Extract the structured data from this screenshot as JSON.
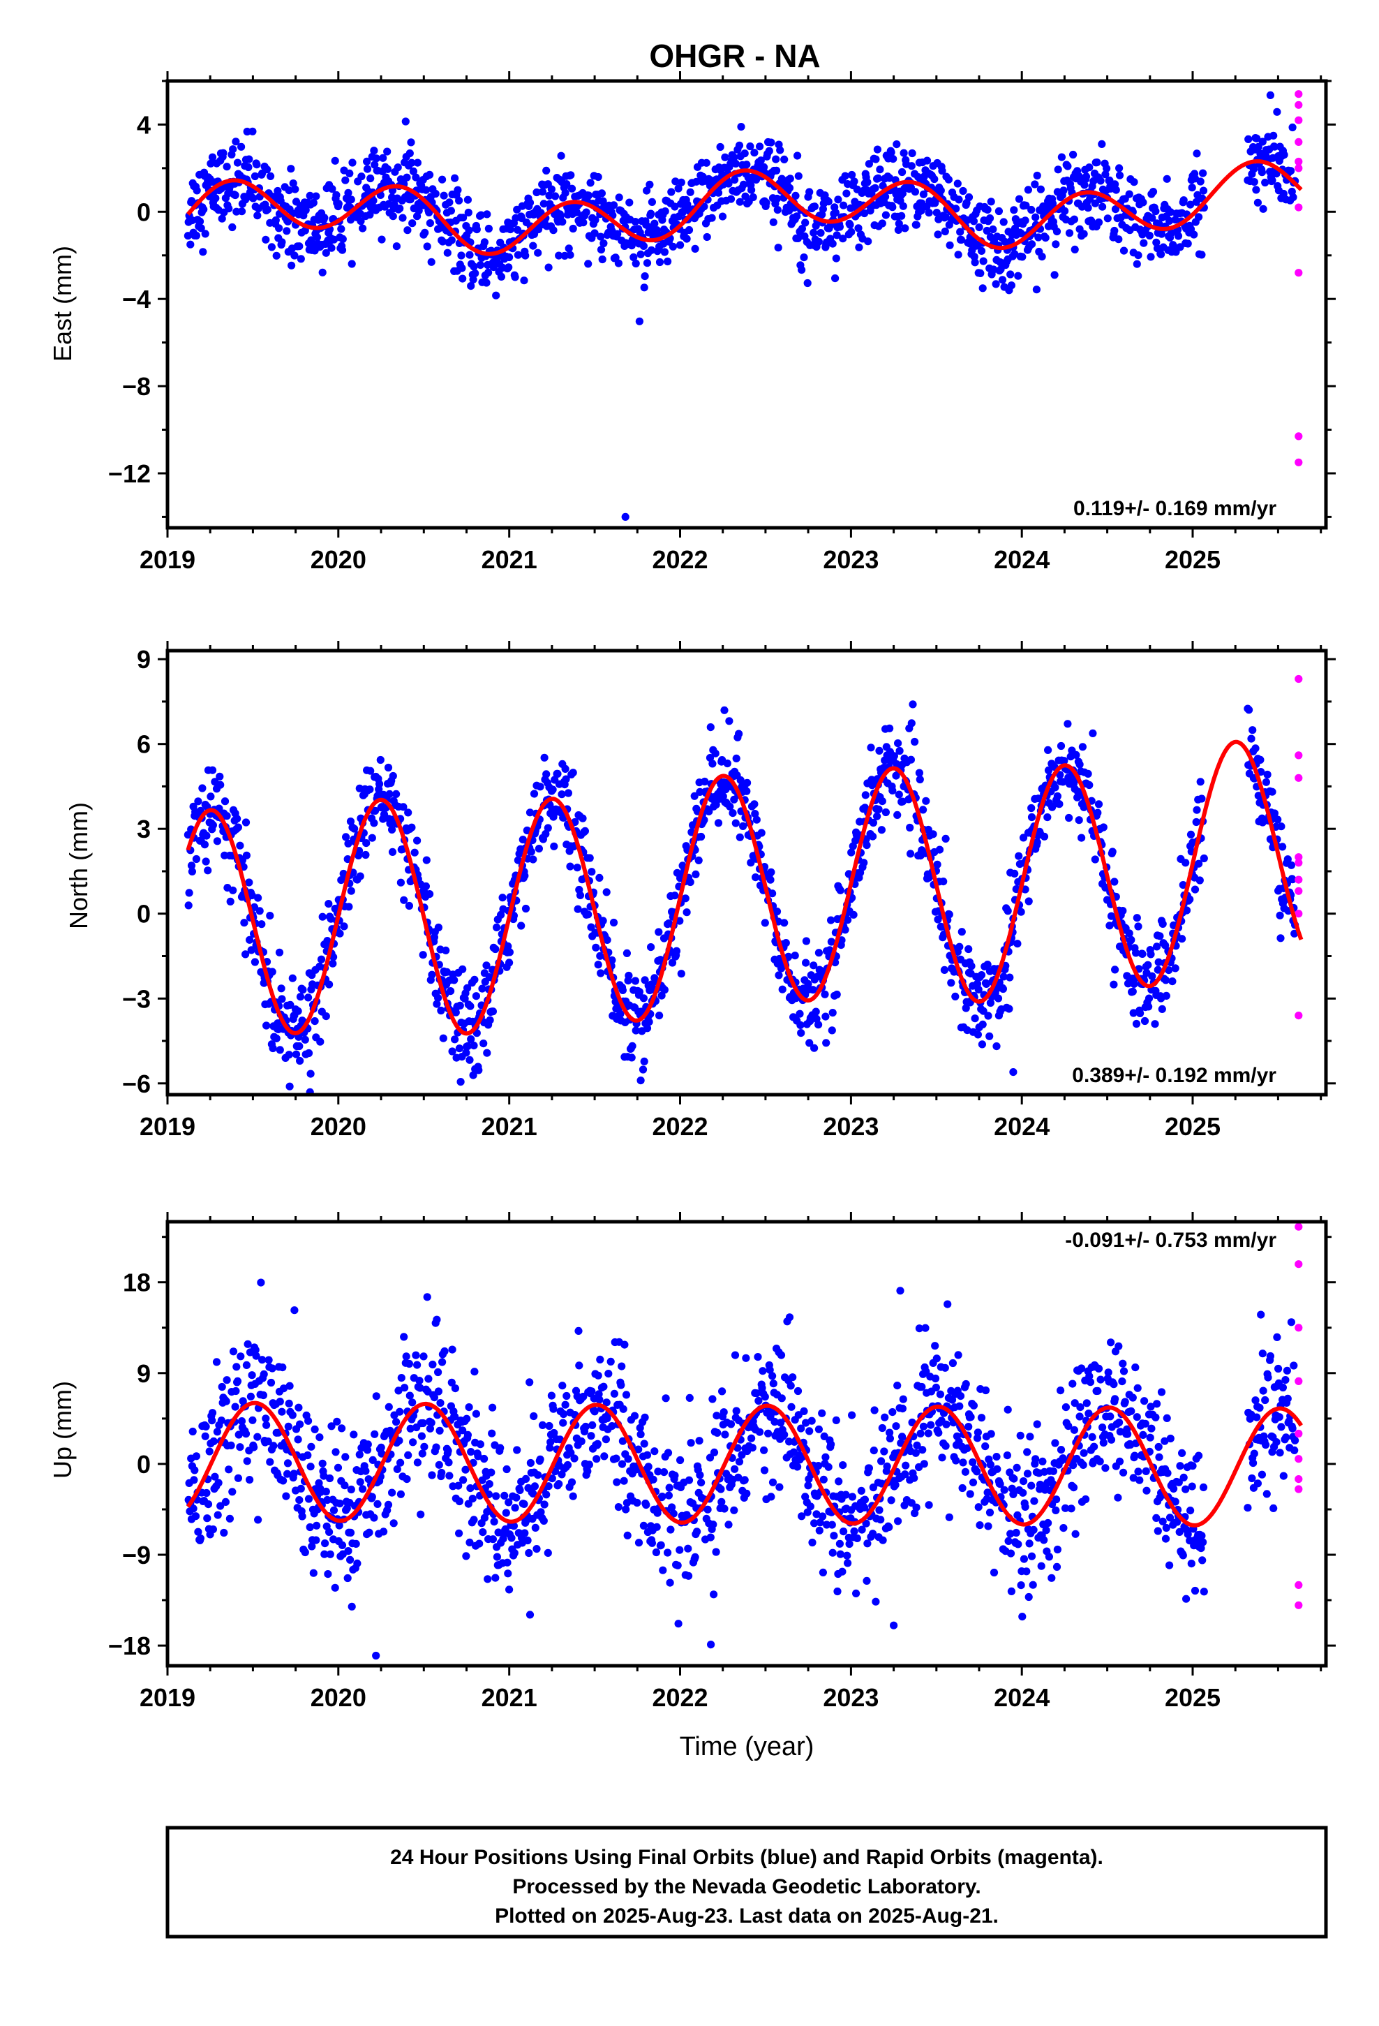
{
  "chart_data": {
    "type": "scatter",
    "title": "OHGR - NA",
    "xlabel": "Time (year)",
    "xlim": [
      2019.0,
      2025.78
    ],
    "x_ticks": [
      2019,
      2020,
      2021,
      2022,
      2023,
      2024,
      2025
    ],
    "colors": {
      "final": "#0000ff",
      "rapid": "#ff00ff",
      "model": "#ff0000"
    },
    "panels": [
      {
        "name": "east",
        "ylabel": "East (mm)",
        "ylim": [
          -14.5,
          6.0
        ],
        "y_ticks": [
          4,
          0,
          -4,
          -8,
          -12
        ],
        "y_tick_labels": [
          "4",
          "0",
          "−4",
          "−8",
          "−12"
        ],
        "rate": "0.119+/- 0.169 mm/yr",
        "rate_position": "bottom-right",
        "model": {
          "offset": 0.0,
          "trend": 0.119,
          "annual": [
            0.9,
            -0.8
          ],
          "semiannual": [
            0.0,
            0.0
          ],
          "wiggle": 0.75
        },
        "scatter_sd": 0.95,
        "rapid_points": [
          [
            2025.62,
            5.4
          ],
          [
            2025.62,
            4.9
          ],
          [
            2025.62,
            4.2
          ],
          [
            2025.62,
            3.2
          ],
          [
            2025.62,
            2.3
          ],
          [
            2025.62,
            2.0
          ],
          [
            2025.62,
            0.2
          ],
          [
            2025.62,
            -2.8
          ],
          [
            2025.62,
            -10.3
          ],
          [
            2025.62,
            -11.5
          ]
        ],
        "outliers": [
          [
            2021.68,
            -14.0
          ]
        ]
      },
      {
        "name": "north",
        "ylabel": "North (mm)",
        "ylim": [
          -6.4,
          9.3
        ],
        "y_ticks": [
          9,
          6,
          3,
          0,
          -3,
          -6
        ],
        "y_tick_labels": [
          "9",
          "6",
          "3",
          "0",
          "−3",
          "−6"
        ],
        "rate": "0.389+/- 0.192 mm/yr",
        "rate_position": "bottom-right",
        "model": {
          "offset": 0.5,
          "trend": 0.389,
          "annual": [
            4.1,
            0.0
          ],
          "semiannual": [
            0.0,
            0.0
          ],
          "wiggle": 0.25
        },
        "scatter_sd": 0.85,
        "rapid_points": [
          [
            2025.62,
            8.3
          ],
          [
            2025.62,
            5.6
          ],
          [
            2025.62,
            4.8
          ],
          [
            2025.62,
            2.0
          ],
          [
            2025.62,
            1.8
          ],
          [
            2025.62,
            1.2
          ],
          [
            2025.62,
            0.8
          ],
          [
            2025.62,
            0.0
          ],
          [
            2025.62,
            -3.6
          ]
        ],
        "outliers": [
          [
            2023.95,
            -5.6
          ]
        ]
      },
      {
        "name": "up",
        "ylabel": "Up (mm)",
        "ylim": [
          -20.0,
          24.0
        ],
        "y_ticks": [
          18,
          9,
          0,
          -9,
          -18
        ],
        "y_tick_labels": [
          "18",
          "9",
          "0",
          "−9",
          "−18"
        ],
        "rate": "-0.091+/- 0.753 mm/yr",
        "rate_position": "top-right",
        "model": {
          "offset": 0.0,
          "trend": -0.091,
          "annual": [
            -0.4,
            -5.8
          ],
          "semiannual": [
            0.0,
            0.0
          ],
          "wiggle": 0.0
        },
        "scatter_sd": 3.8,
        "rapid_points": [
          [
            2025.62,
            23.5
          ],
          [
            2025.62,
            19.8
          ],
          [
            2025.62,
            13.5
          ],
          [
            2025.62,
            8.2
          ],
          [
            2025.62,
            3.0
          ],
          [
            2025.62,
            0.5
          ],
          [
            2025.62,
            -1.5
          ],
          [
            2025.62,
            -2.5
          ],
          [
            2025.62,
            -12.0
          ],
          [
            2025.62,
            -14.0
          ]
        ],
        "outliers": [
          [
            2022.18,
            -17.9
          ],
          [
            2023.25,
            -16.0
          ],
          [
            2020.22,
            -19.0
          ]
        ]
      }
    ]
  },
  "footer": {
    "line1": "24 Hour Positions Using Final Orbits (blue) and Rapid Orbits (magenta).",
    "line2": "Processed by the Nevada Geodetic Laboratory.",
    "line3": "Plotted on 2025-Aug-23. Last data on 2025-Aug-21."
  }
}
